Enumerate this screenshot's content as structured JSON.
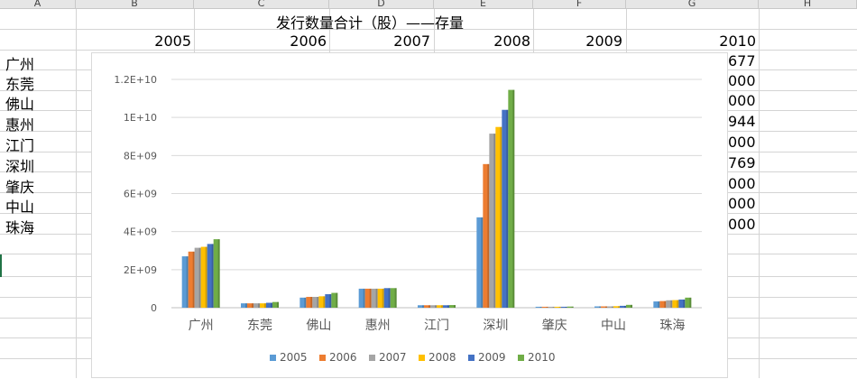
{
  "spreadsheet": {
    "column_headers": [
      "A",
      "B",
      "C",
      "D",
      "E",
      "F",
      "G",
      "H"
    ],
    "title": "发行数量合计（股）——存量",
    "year_headers": [
      "2005",
      "2006",
      "2007",
      "2008",
      "2009",
      "2010"
    ],
    "row_labels": [
      "广州",
      "东莞",
      "佛山",
      "惠州",
      "江门",
      "深圳",
      "肇庆",
      "中山",
      "珠海"
    ],
    "visible_2010_values": [
      "677",
      "000",
      "000",
      "944",
      "000",
      "769",
      "000",
      "000",
      "000"
    ]
  },
  "chart_data": {
    "type": "bar",
    "categories": [
      "广州",
      "东莞",
      "佛山",
      "惠州",
      "江门",
      "深圳",
      "肇庆",
      "中山",
      "珠海"
    ],
    "series": [
      {
        "name": "2005",
        "color": "#5B9BD5",
        "values": [
          2700000000,
          230000000,
          530000000,
          1000000000,
          130000000,
          4750000000,
          50000000,
          70000000,
          330000000
        ]
      },
      {
        "name": "2006",
        "color": "#ED7D31",
        "values": [
          2950000000,
          230000000,
          570000000,
          1000000000,
          130000000,
          7550000000,
          50000000,
          70000000,
          350000000
        ]
      },
      {
        "name": "2007",
        "color": "#A5A5A5",
        "values": [
          3150000000,
          230000000,
          570000000,
          1000000000,
          130000000,
          9150000000,
          50000000,
          70000000,
          390000000
        ]
      },
      {
        "name": "2008",
        "color": "#FFC000",
        "values": [
          3200000000,
          230000000,
          600000000,
          1000000000,
          130000000,
          9500000000,
          50000000,
          80000000,
          400000000
        ]
      },
      {
        "name": "2009",
        "color": "#4472C4",
        "values": [
          3350000000,
          260000000,
          710000000,
          1030000000,
          130000000,
          10400000000,
          50000000,
          100000000,
          430000000
        ]
      },
      {
        "name": "2010",
        "color": "#70AD47",
        "values": [
          3600000000,
          300000000,
          780000000,
          1030000000,
          140000000,
          11450000000,
          60000000,
          150000000,
          530000000
        ]
      }
    ],
    "y_ticks": [
      "0",
      "2E+09",
      "4E+09",
      "6E+09",
      "8E+09",
      "1E+10",
      "1.2E+10"
    ],
    "ylim": [
      0,
      12000000000
    ],
    "grid": true,
    "legend": "bottom"
  }
}
